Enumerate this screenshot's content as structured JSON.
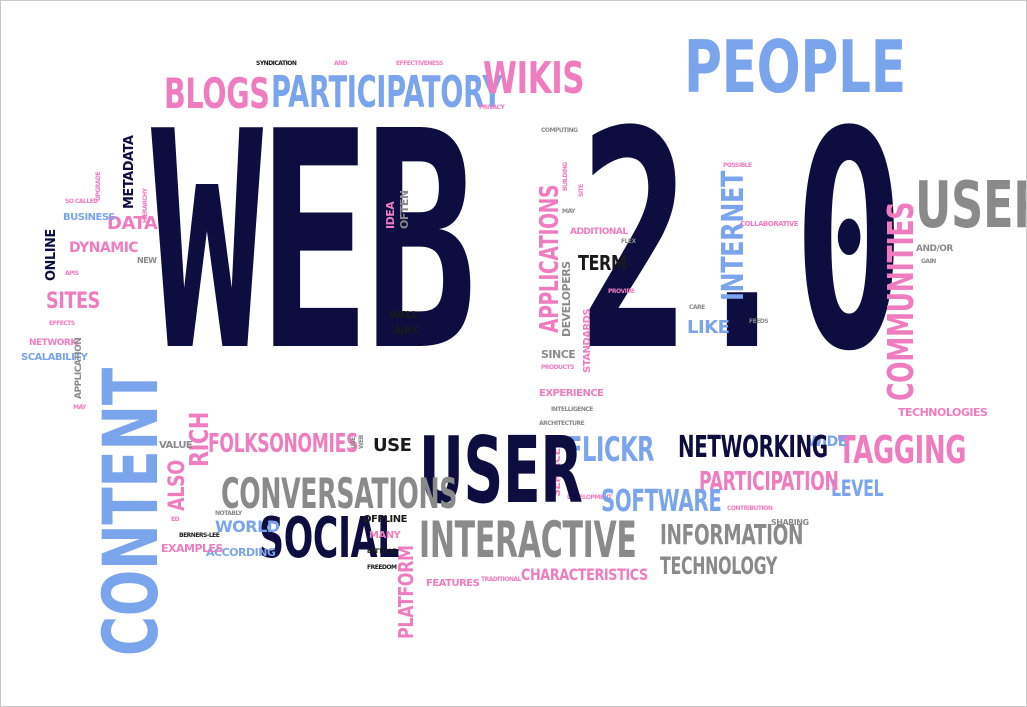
{
  "colors": {
    "navy": "#0d0d3f",
    "pink": "#f07cc0",
    "blue": "#7aa4ec",
    "gray": "#8a8a8a",
    "black": "#1a1a1a"
  },
  "words": {
    "web20": "WEB 2.0",
    "people": "PEOPLE",
    "participatory": "PARTICIPATORY",
    "blogs": "BLOGS",
    "wikis": "WIKIS",
    "content": "CONTENT",
    "user": "USER",
    "users": "USERS",
    "communities": "COMMUNITIES",
    "social": "SOCIAL",
    "conversations": "CONVERSATIONS",
    "interactive": "INTERACTIVE",
    "folksonomies": "FOLKSONOMIES",
    "flickr": "FLICKR",
    "networking": "NETWORKING",
    "tagging": "TAGGING",
    "participation": "PARTICIPATION",
    "software": "SOFTWARE",
    "information": "INFORMATION",
    "technology": "TECHNOLOGY",
    "level": "LEVEL",
    "platform": "PLATFORM",
    "characteristics": "CHARACTERISTICS",
    "applications": "APPLICATIONS",
    "internet": "INTERNET",
    "term": "TERM",
    "like": "LIKE",
    "rich": "RICH",
    "also": "ALSO",
    "use": "USE",
    "world": "WORLD",
    "examples": "EXAMPLES",
    "according": "ACCORDING",
    "sites": "SITES",
    "dynamic": "DYNAMIC",
    "data": "DATA",
    "business": "BUSINESS",
    "metadata": "METADATA",
    "online": "ONLINE",
    "network": "NETWORK",
    "scalability": "SCALABILITY",
    "application": "APPLICATION",
    "technologies": "TECHNOLOGIES",
    "wide": "WIDE",
    "additional": "ADDITIONAL",
    "developers": "DEVELOPERS",
    "standards": "STANDARDS",
    "since": "SINCE",
    "experience": "EXPERIENCE",
    "services": "SERVICES",
    "well": "WELL",
    "ajax": "AJAX",
    "offline": "OFFLINE",
    "many": "MANY",
    "features": "FEATURES",
    "traditional": "TRADITIONAL",
    "sharing": "SHARING",
    "collaborative": "COLLABORATIVE",
    "contribution": "CONTRIBUTION",
    "idea": "IDEA",
    "often": "OFTEN",
    "value": "VALUE",
    "new": "NEW",
    "syndication": "SYNDICATION",
    "effectiveness": "EFFECTIVENESS",
    "privacy": "PRIVACY",
    "computing": "COMPUTING",
    "possible": "POSSIBLE",
    "andor": "AND/OR",
    "intelligence": "INTELLIGENCE",
    "architecture": "ARCHITECTURE",
    "development": "DEVELOPMENT",
    "products": "PRODUCTS",
    "berners_lee": "BERNERS-LEE",
    "battelle": "BATTELLE",
    "freedom": "FREEDOM",
    "notably": "NOTABLY",
    "socalled": "SO CALLED",
    "apis": "APIS",
    "effects": "EFFECTS",
    "may": "MAY",
    "may2": "MAY",
    "flex": "FLEX",
    "feeds": "FEEDS",
    "care": "CARE",
    "and": "AND",
    "provide": "PROVIDE",
    "building": "BUILDING",
    "upgrade": "UPGRADE",
    "hierarchy": "HIERARCHY",
    "site": "SITE",
    "web": "WEB",
    "use_small": "USE",
    "gain": "GAIN",
    "ed": "ED"
  }
}
